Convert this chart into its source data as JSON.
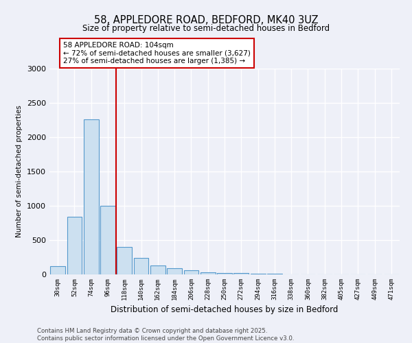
{
  "title_line1": "58, APPLEDORE ROAD, BEDFORD, MK40 3UZ",
  "title_line2": "Size of property relative to semi-detached houses in Bedford",
  "xlabel": "Distribution of semi-detached houses by size in Bedford",
  "ylabel": "Number of semi-detached properties",
  "categories": [
    "30sqm",
    "52sqm",
    "74sqm",
    "96sqm",
    "118sqm",
    "140sqm",
    "162sqm",
    "184sqm",
    "206sqm",
    "228sqm",
    "250sqm",
    "272sqm",
    "294sqm",
    "316sqm",
    "338sqm",
    "360sqm",
    "382sqm",
    "405sqm",
    "427sqm",
    "449sqm",
    "471sqm"
  ],
  "values": [
    120,
    840,
    2260,
    1000,
    400,
    240,
    130,
    90,
    60,
    35,
    25,
    18,
    12,
    8,
    5,
    3,
    2,
    1,
    1,
    0,
    0
  ],
  "bar_color": "#cce0f0",
  "bar_edge_color": "#5599cc",
  "vline_x": 3.5,
  "vline_color": "#cc0000",
  "annotation_box_text": "58 APPLEDORE ROAD: 104sqm\n← 72% of semi-detached houses are smaller (3,627)\n27% of semi-detached houses are larger (1,385) →",
  "annotation_box_color": "#cc0000",
  "annotation_box_bg": "#ffffff",
  "ylim": [
    0,
    3000
  ],
  "yticks": [
    0,
    500,
    1000,
    1500,
    2000,
    2500,
    3000
  ],
  "footer_line1": "Contains HM Land Registry data © Crown copyright and database right 2025.",
  "footer_line2": "Contains public sector information licensed under the Open Government Licence v3.0.",
  "bg_color": "#eef0f8",
  "plot_bg_color": "#eef0f8",
  "grid_color": "#ffffff"
}
